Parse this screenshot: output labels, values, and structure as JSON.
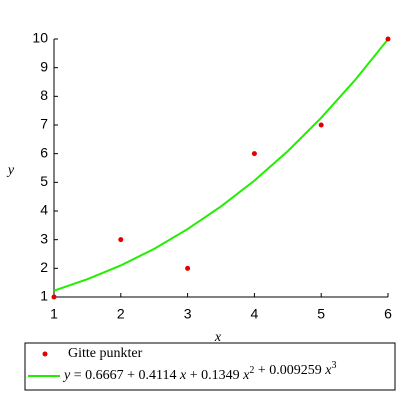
{
  "chart_data": {
    "type": "scatter-fit",
    "xlabel": "x",
    "ylabel": "y",
    "xlim": [
      1,
      6
    ],
    "ylim": [
      1,
      10
    ],
    "xticks": [
      1,
      2,
      3,
      4,
      5,
      6
    ],
    "yticks": [
      1,
      2,
      3,
      4,
      5,
      6,
      7,
      8,
      9,
      10
    ],
    "series": [
      {
        "name": "Gitte punkter",
        "color": "#e00000",
        "kind": "points",
        "x": [
          1,
          2,
          3,
          4,
          5,
          6
        ],
        "values": [
          1,
          3,
          2,
          6,
          7,
          10
        ]
      },
      {
        "name": "y = 0.6667 + 0.4114 x + 0.1349 x2 + 0.009259 x3",
        "color": "#22ee00",
        "kind": "line",
        "x": [
          1,
          1.5,
          2,
          2.5,
          3,
          3.5,
          4,
          4.5,
          5,
          5.5,
          6
        ],
        "values": [
          1.22,
          1.62,
          2.1,
          2.68,
          3.37,
          4.16,
          5.06,
          6.09,
          7.25,
          8.55,
          9.99
        ]
      }
    ]
  }
}
